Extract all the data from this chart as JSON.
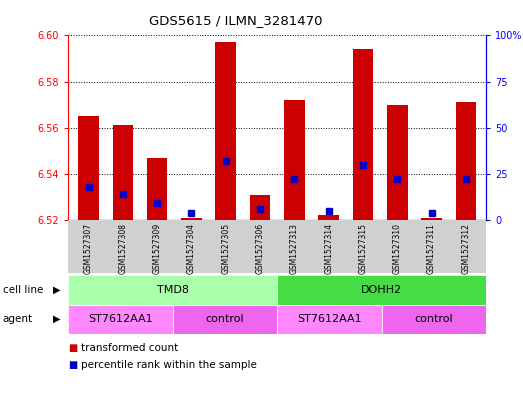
{
  "title": "GDS5615 / ILMN_3281470",
  "samples": [
    "GSM1527307",
    "GSM1527308",
    "GSM1527309",
    "GSM1527304",
    "GSM1527305",
    "GSM1527306",
    "GSM1527313",
    "GSM1527314",
    "GSM1527315",
    "GSM1527310",
    "GSM1527311",
    "GSM1527312"
  ],
  "red_values": [
    6.565,
    6.561,
    6.547,
    6.521,
    6.597,
    6.531,
    6.572,
    6.522,
    6.594,
    6.57,
    6.521,
    6.571
  ],
  "blue_values_pct": [
    18,
    14,
    9,
    4,
    32,
    6,
    22,
    5,
    30,
    22,
    4,
    22
  ],
  "ylim_left": [
    6.52,
    6.6
  ],
  "ylim_right": [
    0,
    100
  ],
  "yticks_left": [
    6.52,
    6.54,
    6.56,
    6.58,
    6.6
  ],
  "yticks_right": [
    0,
    25,
    50,
    75,
    100
  ],
  "ytick_labels_right": [
    "0",
    "25",
    "50",
    "75",
    "100%"
  ],
  "bar_width": 0.6,
  "red_color": "#cc0000",
  "blue_color": "#0000cc",
  "baseline": 6.52,
  "cell_line_groups": [
    {
      "label": "TMD8",
      "start": 0,
      "end": 5,
      "color": "#aaffaa"
    },
    {
      "label": "DOHH2",
      "start": 6,
      "end": 11,
      "color": "#44dd44"
    }
  ],
  "agent_groups": [
    {
      "label": "ST7612AA1",
      "start": 0,
      "end": 2,
      "color": "#ff88ff"
    },
    {
      "label": "control",
      "start": 3,
      "end": 5,
      "color": "#ee66ee"
    },
    {
      "label": "ST7612AA1",
      "start": 6,
      "end": 8,
      "color": "#ff88ff"
    },
    {
      "label": "control",
      "start": 9,
      "end": 11,
      "color": "#ee66ee"
    }
  ],
  "legend_items": [
    {
      "color": "#cc0000",
      "label": "transformed count"
    },
    {
      "color": "#0000cc",
      "label": "percentile rank within the sample"
    }
  ],
  "plot_bg": "#ffffff",
  "fig_bg": "#ffffff",
  "xtick_bg": "#d0d0d0",
  "grid_color": "#000000"
}
